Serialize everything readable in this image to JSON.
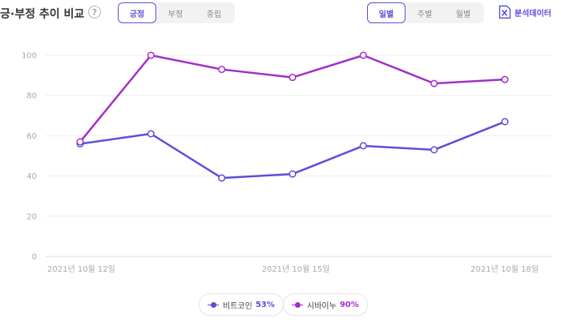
{
  "header": {
    "title": "긍·부정 추이 비교",
    "help_symbol": "?",
    "sentiment_tabs": [
      {
        "label": "긍정",
        "active": true
      },
      {
        "label": "부정",
        "active": false
      },
      {
        "label": "중립",
        "active": false
      }
    ],
    "period_tabs": [
      {
        "label": "일별",
        "active": true
      },
      {
        "label": "주별",
        "active": false
      },
      {
        "label": "월별",
        "active": false
      }
    ],
    "export_label": "분석데이터",
    "accent_color": "#5b4fd8"
  },
  "legend": [
    {
      "name": "비트코인",
      "value": "53%",
      "color": "#5b4fd8"
    },
    {
      "name": "시바이누",
      "value": "90%",
      "color": "#a42ec9"
    }
  ],
  "chart_data": {
    "type": "line",
    "x": [
      "2021-10-12",
      "2021-10-13",
      "2021-10-14",
      "2021-10-15",
      "2021-10-16",
      "2021-10-17",
      "2021-10-18"
    ],
    "x_tick_labels": [
      "2021년 10월 12일",
      "",
      "",
      "2021년 10월 15일",
      "",
      "",
      "2021년 10월 18일"
    ],
    "ylim": [
      0,
      100
    ],
    "y_ticks": [
      0,
      20,
      40,
      60,
      80,
      100
    ],
    "grid": true,
    "legend_position": "bottom",
    "series": [
      {
        "name": "비트코인",
        "color": "#5b4fd8",
        "values": [
          56,
          61,
          39,
          41,
          55,
          53,
          67
        ]
      },
      {
        "name": "시바이누",
        "color": "#a42ec9",
        "values": [
          57,
          100,
          93,
          89,
          100,
          86,
          88
        ]
      }
    ]
  }
}
